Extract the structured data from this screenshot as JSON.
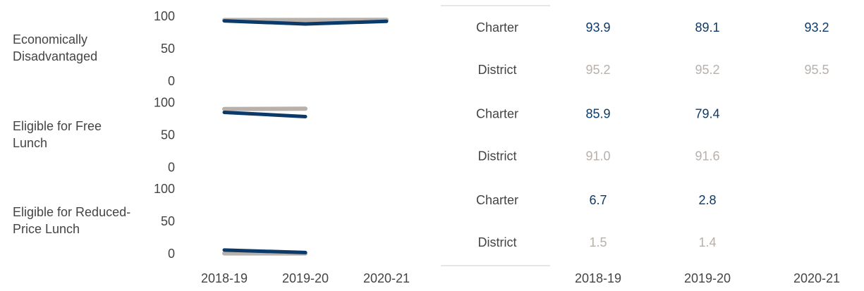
{
  "chart_data": [
    {
      "type": "line",
      "title": "Economically Disadvantaged",
      "series": [
        {
          "name": "Charter",
          "color": "#0b3a6a",
          "values": [
            93.9,
            89.1,
            93.2
          ]
        },
        {
          "name": "District",
          "color": "#b8b0aa",
          "values": [
            95.2,
            95.2,
            95.5
          ]
        }
      ],
      "ylim": [
        0,
        100
      ],
      "yticks": [
        0,
        50,
        100
      ]
    },
    {
      "type": "line",
      "title": "Eligible for Free Lunch",
      "series": [
        {
          "name": "Charter",
          "color": "#0b3a6a",
          "values": [
            85.9,
            79.4,
            null
          ]
        },
        {
          "name": "District",
          "color": "#b8b0aa",
          "values": [
            91,
            91.6,
            null
          ],
          "value_labels": [
            "91.0",
            "91.6",
            null
          ]
        }
      ],
      "ylim": [
        0,
        100
      ],
      "yticks": [
        0,
        50,
        100
      ]
    },
    {
      "type": "line",
      "title": "Eligible for Reduced-Price Lunch",
      "categories": [
        "2018-19",
        "2019-20",
        "2020-21"
      ],
      "series": [
        {
          "name": "Charter",
          "color": "#0b3a6a",
          "values": [
            6.7,
            2.8,
            null
          ]
        },
        {
          "name": "District",
          "color": "#b8b0aa",
          "values": [
            1.5,
            1.4,
            null
          ]
        }
      ],
      "ylim": [
        0,
        100
      ],
      "yticks": [
        0,
        50,
        100
      ]
    }
  ]
}
